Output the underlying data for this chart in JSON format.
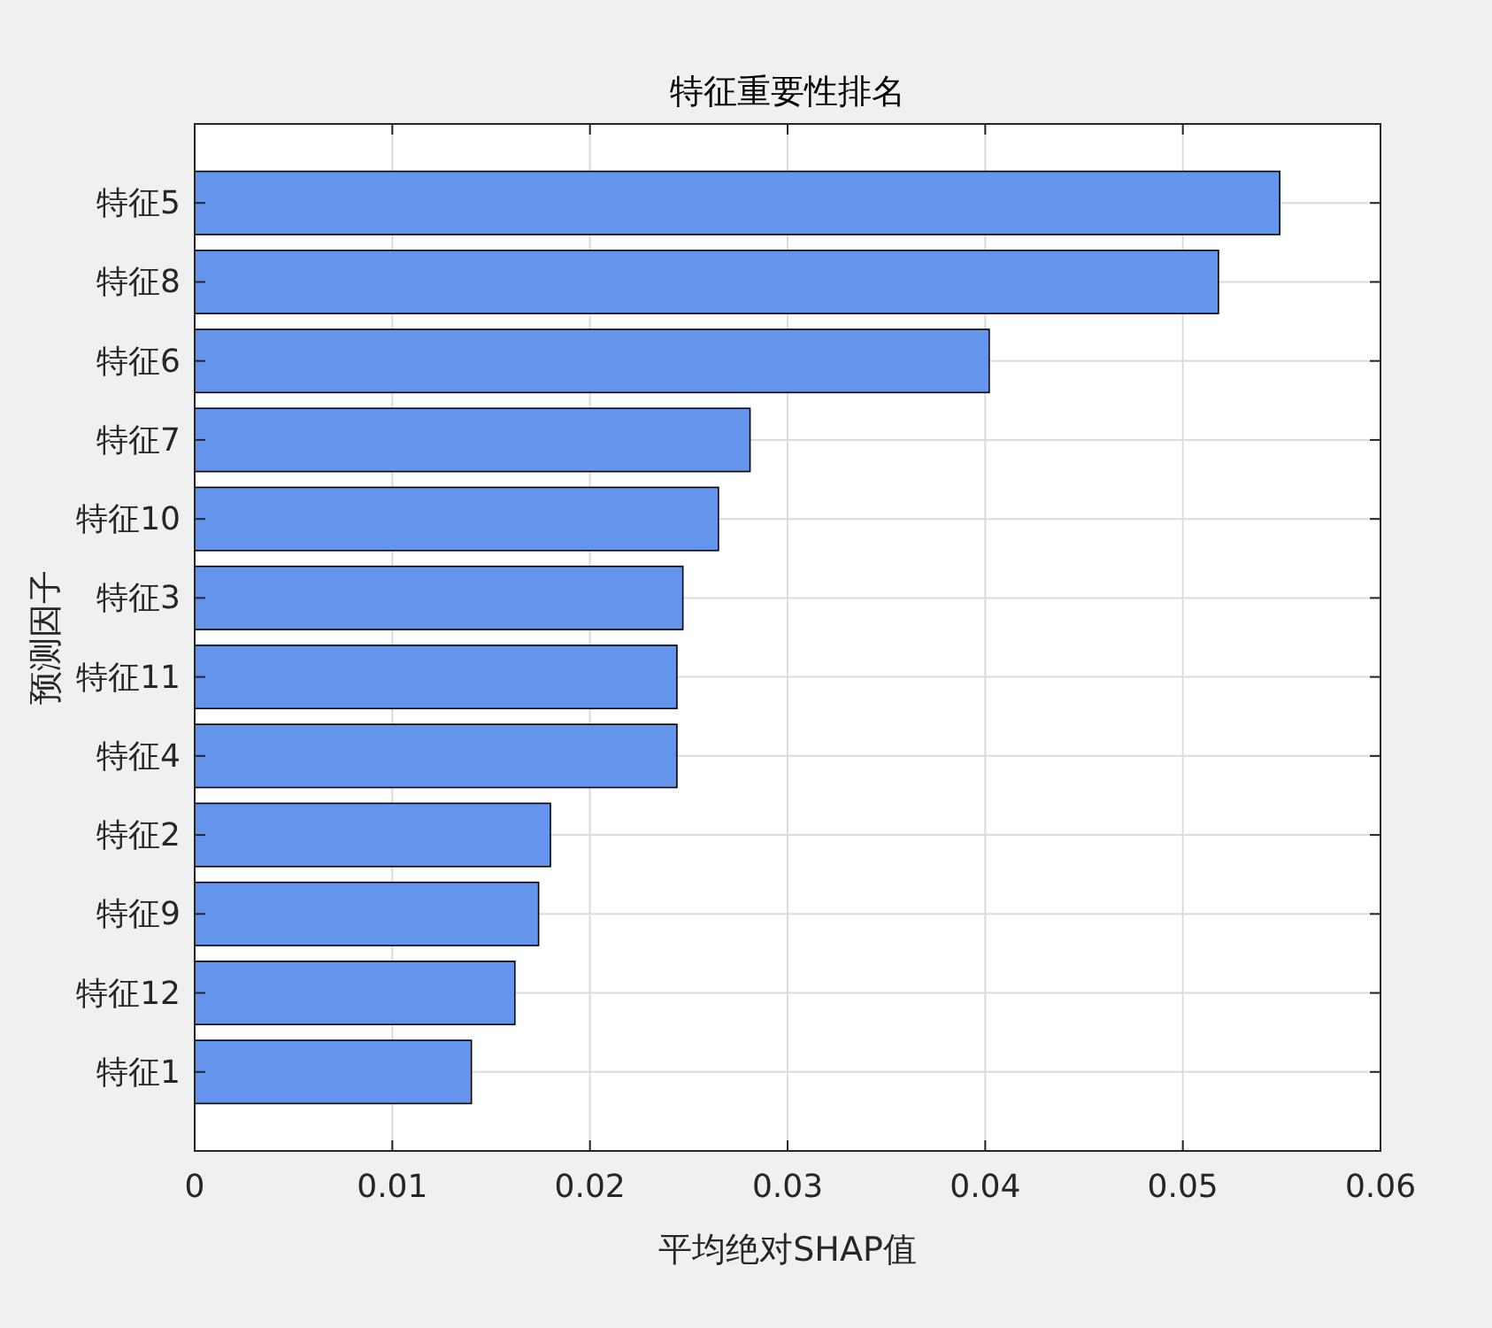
{
  "chart_data": {
    "type": "bar",
    "orientation": "horizontal",
    "title": "特征重要性排名",
    "xlabel": "平均绝对SHAP值",
    "ylabel": "预测因子",
    "categories": [
      "特征5",
      "特征8",
      "特征6",
      "特征7",
      "特征10",
      "特征3",
      "特征11",
      "特征4",
      "特征2",
      "特征9",
      "特征12",
      "特征1"
    ],
    "values": [
      0.0549,
      0.0518,
      0.0402,
      0.0281,
      0.0265,
      0.0247,
      0.0244,
      0.0244,
      0.018,
      0.0174,
      0.0162,
      0.014
    ],
    "color": "#6495ed",
    "xlim": [
      0,
      0.06
    ],
    "xticks": [
      0,
      0.01,
      0.02,
      0.03,
      0.04,
      0.05,
      0.06
    ],
    "grid": true
  }
}
